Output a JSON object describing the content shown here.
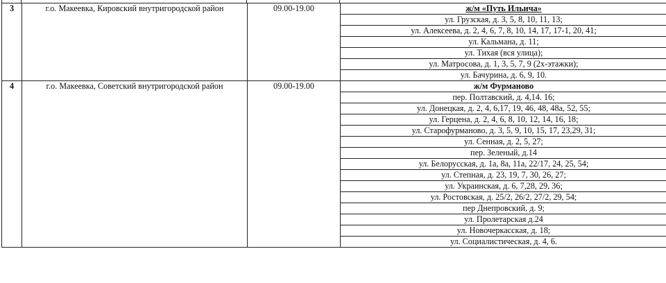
{
  "rows": [
    {
      "number": "3",
      "district": "г.о. Макеевка, Кировский внутригородской район",
      "hours": "09.00-19.00",
      "area": "ж/м «Путь Ильича»",
      "addresses": [
        "ул. Грузская, д. 3, 5, 8, 10, 11, 13;",
        "ул. Алексеева, д. 2, 4, 6, 7, 8, 10, 14, 17, 17-1, 20, 41;",
        "ул. Кальмана, д. 11;",
        "ул. Тихая (вся улица);",
        "ул. Матросова, д. 1, 3, 5, 7, 9 (2х-этажки);",
        "ул. Бачурина, д. 6, 9, 10."
      ]
    },
    {
      "number": "4",
      "district": "г.о. Макеевка, Советский внутригородской район",
      "hours": "09.00-19.00",
      "area": "ж/м Фурманово",
      "addresses": [
        "пер. Полтавский, д. 4,14. 16;",
        "ул. Донецкая, д. 2, 4, 6,17, 19, 46, 48, 48а, 52, 55;",
        "ул. Герцена, д. 2, 4, 6, 8, 10, 12, 14, 16, 18;",
        "ул. Старофурманово, д. 3, 5, 9, 10, 15, 17, 23,29, 31;",
        "ул. Сенная, д. 2, 5, 27;",
        "пер. Зеленый, д.14",
        "ул. Белорусская, д. 1а, 8а, 11а, 22/17, 24, 25, 54;",
        "ул. Степная, д. 23, 19, 7, 30, 26, 27;",
        "ул. Украинская, д. 6, 7,28, 29, 36;",
        "ул. Ростовская, д. 25/2, 26/2, 27/2, 29, 54;",
        "пер Днепровский, д. 9;",
        "ул. Пролетарская д.24",
        "ул. Новочеркасская, д. 18;",
        "ул. Социалистическая, д. 4, 6."
      ]
    }
  ]
}
